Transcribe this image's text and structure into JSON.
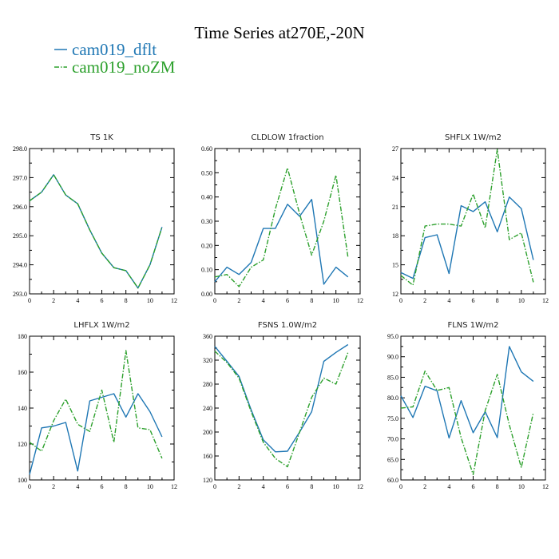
{
  "title": "Time Series at270E,-20N",
  "legend": [
    {
      "label": "cam019_dflt",
      "color": "#1f77b4",
      "dash": "solid"
    },
    {
      "label": "cam019_noZM",
      "color": "#2ca02c",
      "dash": "dashdot"
    }
  ],
  "chart_data": [
    {
      "type": "line",
      "title": "TS   1K",
      "xlim": [
        0,
        12
      ],
      "xticks": [
        "0",
        "2",
        "4",
        "6",
        "8",
        "10",
        "12"
      ],
      "ylim": [
        293,
        298
      ],
      "yticks": [
        "293.0",
        "294.0",
        "295.0",
        "296.0",
        "297.0",
        "298.0"
      ],
      "x": [
        0,
        1,
        2,
        3,
        4,
        5,
        6,
        7,
        8,
        9,
        10,
        11
      ],
      "series": [
        {
          "name": "cam019_dflt",
          "values": [
            296.2,
            296.5,
            297.1,
            296.4,
            296.1,
            295.2,
            294.4,
            293.9,
            293.8,
            293.2,
            294.0,
            295.3
          ]
        },
        {
          "name": "cam019_noZM",
          "values": [
            296.2,
            296.5,
            297.1,
            296.4,
            296.1,
            295.2,
            294.4,
            293.9,
            293.8,
            293.2,
            294.0,
            295.3
          ]
        }
      ]
    },
    {
      "type": "line",
      "title": "CLDLOW   1fraction",
      "xlim": [
        0,
        12
      ],
      "xticks": [
        "0",
        "2",
        "4",
        "6",
        "8",
        "10",
        "12"
      ],
      "ylim": [
        0,
        0.6
      ],
      "yticks": [
        "0.00",
        "0.10",
        "0.20",
        "0.30",
        "0.40",
        "0.50",
        "0.60"
      ],
      "x": [
        0,
        1,
        2,
        3,
        4,
        5,
        6,
        7,
        8,
        9,
        10,
        11
      ],
      "series": [
        {
          "name": "cam019_dflt",
          "values": [
            0.05,
            0.11,
            0.08,
            0.13,
            0.27,
            0.27,
            0.37,
            0.32,
            0.39,
            0.04,
            0.11,
            0.07
          ]
        },
        {
          "name": "cam019_noZM",
          "values": [
            0.07,
            0.08,
            0.03,
            0.11,
            0.14,
            0.35,
            0.52,
            0.33,
            0.16,
            0.3,
            0.49,
            0.15
          ]
        }
      ]
    },
    {
      "type": "line",
      "title": "SHFLX   1W/m2",
      "xlim": [
        0,
        12
      ],
      "xticks": [
        "0",
        "2",
        "4",
        "6",
        "8",
        "10",
        "12"
      ],
      "ylim": [
        12,
        27
      ],
      "yticks": [
        "12",
        "15",
        "18",
        "21",
        "24",
        "27"
      ],
      "x": [
        0,
        1,
        2,
        3,
        4,
        5,
        6,
        7,
        8,
        9,
        10,
        11
      ],
      "series": [
        {
          "name": "cam019_dflt",
          "values": [
            14.2,
            13.6,
            17.8,
            18.1,
            14.1,
            21.1,
            20.5,
            21.5,
            18.4,
            22.0,
            20.8,
            15.5
          ]
        },
        {
          "name": "cam019_noZM",
          "values": [
            13.9,
            12.9,
            19.0,
            19.2,
            19.2,
            19.0,
            22.3,
            18.8,
            26.9,
            17.6,
            18.3,
            13.2
          ]
        }
      ]
    },
    {
      "type": "line",
      "title": "LHFLX   1W/m2",
      "xlim": [
        0,
        12
      ],
      "xticks": [
        "0",
        "2",
        "4",
        "6",
        "8",
        "10",
        "12"
      ],
      "ylim": [
        100,
        180
      ],
      "yticks": [
        "100",
        "120",
        "140",
        "160",
        "180"
      ],
      "x": [
        0,
        1,
        2,
        3,
        4,
        5,
        6,
        7,
        8,
        9,
        10,
        11
      ],
      "series": [
        {
          "name": "cam019_dflt",
          "values": [
            103,
            129,
            130,
            132,
            105,
            144,
            146,
            148,
            135,
            148,
            138,
            124
          ]
        },
        {
          "name": "cam019_noZM",
          "values": [
            121,
            116,
            133,
            145,
            131,
            127,
            150,
            121,
            172,
            129,
            128,
            112
          ]
        }
      ]
    },
    {
      "type": "line",
      "title": "FSNS   1.0W/m2",
      "xlim": [
        0,
        12
      ],
      "xticks": [
        "0",
        "2",
        "4",
        "6",
        "8",
        "10",
        "12"
      ],
      "ylim": [
        120,
        360
      ],
      "yticks": [
        "120",
        "160",
        "200",
        "240",
        "280",
        "320",
        "360"
      ],
      "x": [
        0,
        1,
        2,
        3,
        4,
        5,
        6,
        7,
        8,
        9,
        10,
        11
      ],
      "series": [
        {
          "name": "cam019_dflt",
          "values": [
            343,
            318,
            293,
            237,
            187,
            167,
            168,
            200,
            234,
            318,
            333,
            346
          ]
        },
        {
          "name": "cam019_noZM",
          "values": [
            335,
            316,
            290,
            234,
            183,
            156,
            142,
            200,
            258,
            290,
            280,
            333
          ]
        }
      ]
    },
    {
      "type": "line",
      "title": "FLNS   1W/m2",
      "xlim": [
        0,
        12
      ],
      "xticks": [
        "0",
        "2",
        "4",
        "6",
        "8",
        "10",
        "12"
      ],
      "ylim": [
        60,
        95
      ],
      "yticks": [
        "60.0",
        "65.0",
        "70.0",
        "75.0",
        "80.0",
        "85.0",
        "90.0",
        "95.0"
      ],
      "x": [
        0,
        1,
        2,
        3,
        4,
        5,
        6,
        7,
        8,
        9,
        10,
        11
      ],
      "series": [
        {
          "name": "cam019_dflt",
          "values": [
            80.5,
            75.2,
            82.8,
            81.7,
            70.2,
            79.3,
            71.5,
            76.6,
            70.3,
            92.5,
            86.3,
            84.0
          ]
        },
        {
          "name": "cam019_noZM",
          "values": [
            77.5,
            77.8,
            86.5,
            81.8,
            82.5,
            70.3,
            61.3,
            76.9,
            85.7,
            73.4,
            63.0,
            76.4
          ]
        }
      ]
    }
  ]
}
